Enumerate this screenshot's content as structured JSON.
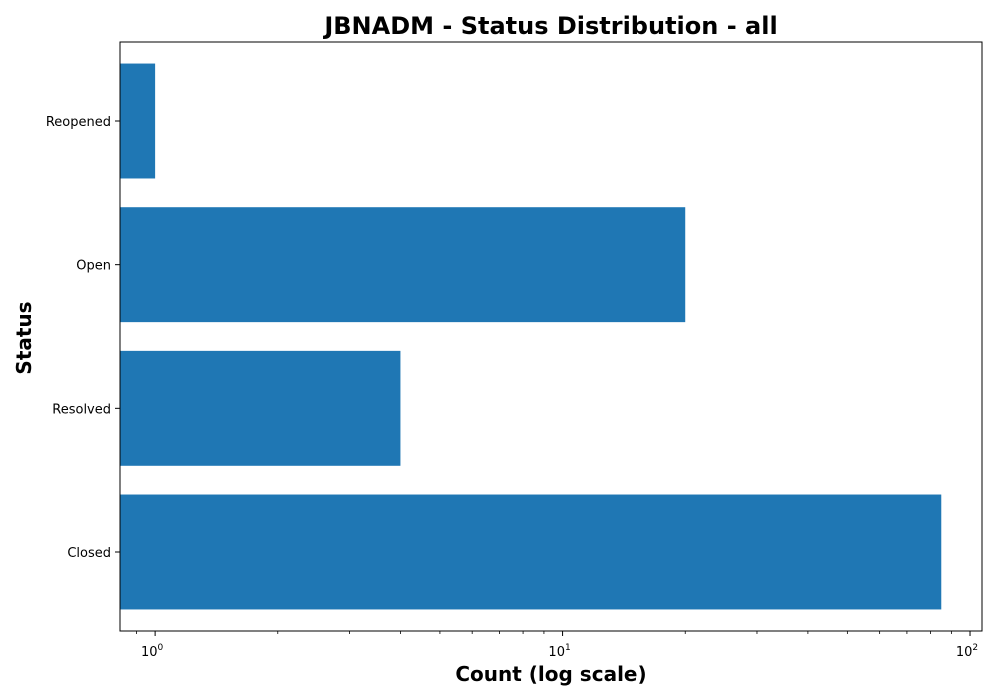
{
  "chart_data": {
    "type": "bar",
    "orientation": "horizontal",
    "title": "JBNADM - Status Distribution - all",
    "xlabel": "Count (log scale)",
    "ylabel": "Status",
    "x_scale": "log",
    "xlim": [
      0.82,
      107
    ],
    "x_ticks": [
      {
        "value": 1,
        "base": "10",
        "exp": "0"
      },
      {
        "value": 10,
        "base": "10",
        "exp": "1"
      },
      {
        "value": 100,
        "base": "10",
        "exp": "2"
      }
    ],
    "categories": [
      "Closed",
      "Resolved",
      "Open",
      "Reopened"
    ],
    "values": [
      85,
      4,
      20,
      1
    ],
    "bar_color": "#1f77b4",
    "grid": false,
    "legend": "none"
  }
}
